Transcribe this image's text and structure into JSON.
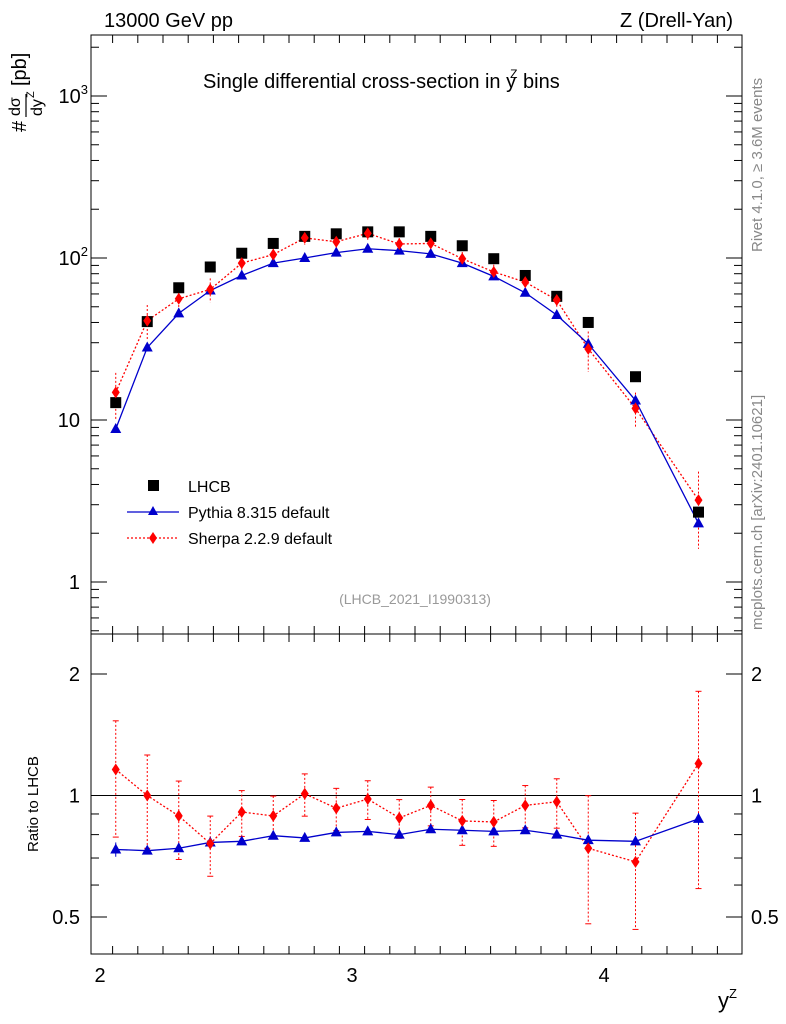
{
  "header": {
    "energy": "13000 GeV pp",
    "process": "Z (Drell-Yan)"
  },
  "side_text": {
    "rivet": "Rivet 4.1.0, ≥ 3.6M events",
    "site": "mcplots.cern.ch [arXiv:2401.10621]"
  },
  "chart_data": [
    {
      "type": "scatter",
      "panel": "main",
      "title": "Single differential cross-section in y bins",
      "title_prefix": "Single differential cross-section in ",
      "title_symbol": "y",
      "title_superscript": "Z",
      "title_suffix": " bins",
      "ylabel": "#dσ/dy^Z [pb]",
      "ylabel_parts": {
        "hash": "#",
        "num": "dσ",
        "den": "dy",
        "den_sup": "Z",
        "unit": "[pb]"
      },
      "xlabel": "y^Z",
      "xlabel_parts": {
        "main": "y",
        "sup": "Z"
      },
      "yscale": "log",
      "ylim": [
        0.45,
        2300
      ],
      "xlim": [
        2.0,
        4.55
      ],
      "yticks_major": [
        {
          "value": 1,
          "label": "1"
        },
        {
          "value": 10,
          "label": "10"
        },
        {
          "value": 100,
          "label": "10",
          "exp": "2"
        },
        {
          "value": 1000,
          "label": "10",
          "exp": "3"
        }
      ],
      "watermark": "(LHCB_2021_I1990313)",
      "legend_position": "lower-left",
      "x": [
        2.0625,
        2.1875,
        2.3125,
        2.4375,
        2.5625,
        2.6875,
        2.8125,
        2.9375,
        3.0625,
        3.1875,
        3.3125,
        3.4375,
        3.5625,
        3.6875,
        3.8125,
        3.9375,
        4.125,
        4.375
      ],
      "series": [
        {
          "name": "LHCB",
          "style": "square",
          "color": "#000000",
          "values": [
            12.8,
            40.5,
            65.5,
            88.0,
            107.0,
            123.0,
            136.0,
            141.0,
            145.0,
            145.0,
            136.0,
            119.0,
            99.0,
            78.0,
            58.0,
            40.0,
            18.5,
            2.7
          ]
        },
        {
          "name": "Pythia 8.315 default",
          "style": "triangle-line",
          "color": "#0000cc",
          "values": [
            8.8,
            28.0,
            45.5,
            63.0,
            78.0,
            93.0,
            100.0,
            108.0,
            114.0,
            111.0,
            106.0,
            93.0,
            77.0,
            61.0,
            44.5,
            29.5,
            13.2,
            2.3
          ]
        },
        {
          "name": "Sherpa 2.2.9 default",
          "style": "diamond-dotted",
          "color": "#ff0000",
          "values": [
            14.8,
            41.0,
            56.0,
            64.0,
            93.0,
            105.0,
            133.0,
            126.0,
            142.0,
            122.0,
            123.0,
            99.0,
            82.0,
            71.0,
            55.0,
            27.5,
            11.8,
            3.2
          ],
          "err_rel": [
            0.32,
            0.25,
            0.15,
            0.17,
            0.11,
            0.1,
            0.09,
            0.1,
            0.09,
            0.09,
            0.09,
            0.1,
            0.11,
            0.14,
            0.11,
            0.28,
            0.25,
            0.5
          ]
        }
      ]
    },
    {
      "type": "scatter",
      "panel": "ratio",
      "ylabel": "Ratio to LHCB",
      "yscale": "log",
      "ylim": [
        0.42,
        2.4
      ],
      "xlim": [
        2.0,
        4.55
      ],
      "yticks_major": [
        {
          "value": 0.5,
          "label": "0.5"
        },
        {
          "value": 1,
          "label": "1"
        },
        {
          "value": 2,
          "label": "2"
        }
      ],
      "xticks_major": [
        {
          "value": 2,
          "label": "2"
        },
        {
          "value": 3,
          "label": "3"
        },
        {
          "value": 4,
          "label": "4"
        }
      ],
      "reference_line": 1,
      "x": [
        2.0625,
        2.1875,
        2.3125,
        2.4375,
        2.5625,
        2.6875,
        2.8125,
        2.9375,
        3.0625,
        3.1875,
        3.3125,
        3.4375,
        3.5625,
        3.6875,
        3.8125,
        3.9375,
        4.125,
        4.375
      ],
      "series": [
        {
          "name": "Pythia 8.315 default",
          "color": "#0000cc",
          "values": [
            0.735,
            0.73,
            0.74,
            0.765,
            0.77,
            0.795,
            0.785,
            0.81,
            0.815,
            0.8,
            0.825,
            0.82,
            0.815,
            0.82,
            0.8,
            0.775,
            0.77,
            0.875
          ],
          "err_abs": [
            0.03,
            0.015,
            0.015,
            0.015,
            0.01,
            0.01,
            0.01,
            0.01,
            0.01,
            0.01,
            0.01,
            0.01,
            0.01,
            0.01,
            0.01,
            0.01,
            0.015,
            0.03
          ]
        },
        {
          "name": "Sherpa 2.2.9 default",
          "color": "#ff0000",
          "values": [
            1.16,
            1.0,
            0.89,
            0.76,
            0.91,
            0.89,
            1.01,
            0.93,
            0.98,
            0.88,
            0.945,
            0.865,
            0.86,
            0.945,
            0.965,
            0.74,
            0.685,
            1.2
          ],
          "err_rel": [
            0.32,
            0.26,
            0.22,
            0.17,
            0.13,
            0.12,
            0.12,
            0.12,
            0.11,
            0.11,
            0.11,
            0.13,
            0.13,
            0.12,
            0.14,
            0.35,
            0.32,
            0.51
          ]
        }
      ]
    }
  ]
}
